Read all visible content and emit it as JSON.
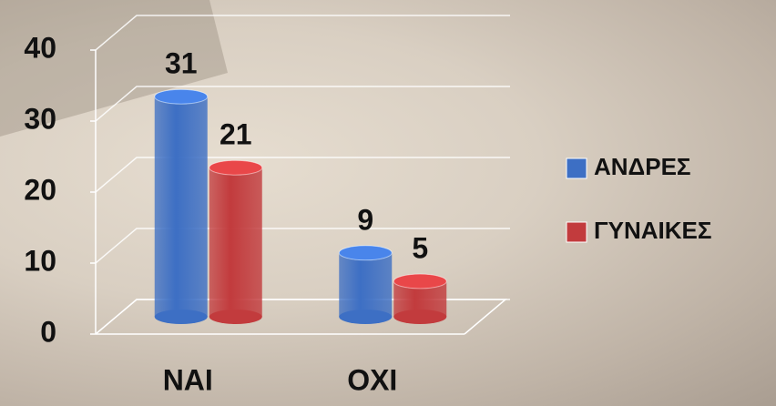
{
  "chart_data": {
    "type": "bar",
    "categories": [
      "ΝΑΙ",
      "ΟΧΙ"
    ],
    "series": [
      {
        "name": "ΑΝΔΡΕΣ",
        "color": "#3d6fc4",
        "values": [
          31,
          9
        ]
      },
      {
        "name": "ΓΥΝΑΙΚΕΣ",
        "color": "#c23b3d",
        "values": [
          21,
          5
        ]
      }
    ],
    "ylim": [
      0,
      40
    ],
    "yticks": [
      0,
      10,
      20,
      30,
      40
    ],
    "grid": true,
    "legend": "right"
  }
}
